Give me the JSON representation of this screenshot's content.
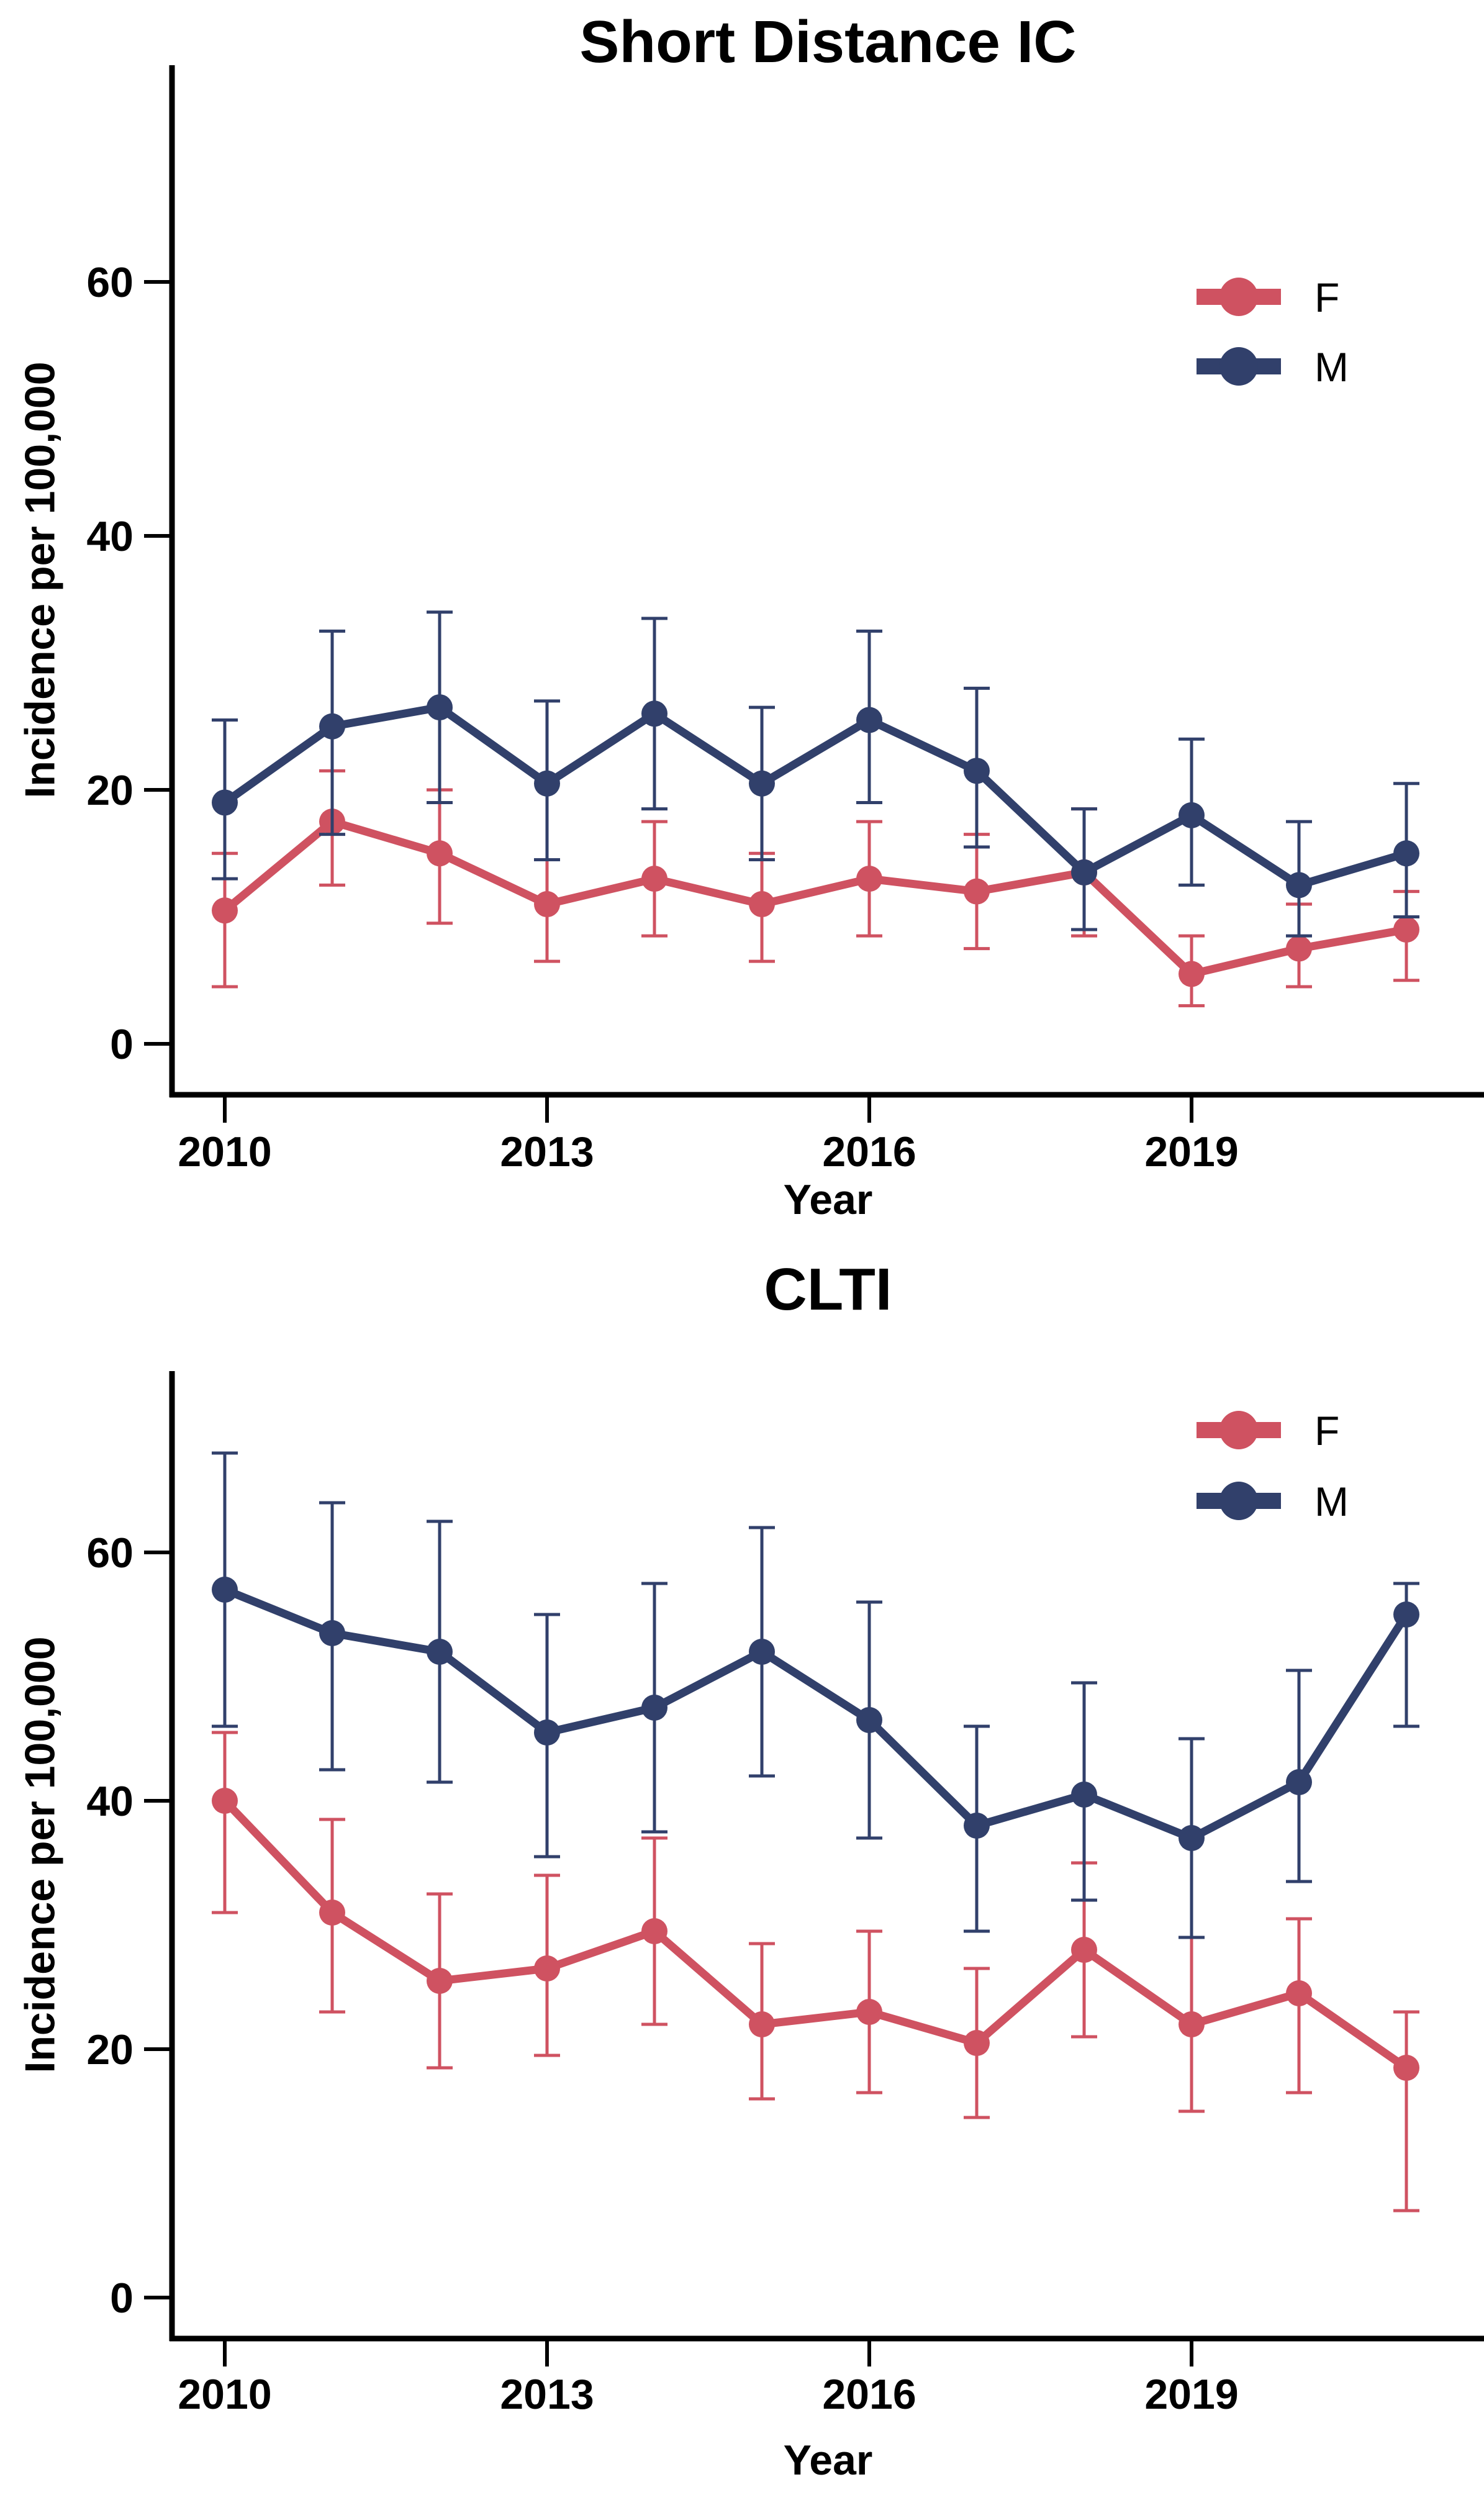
{
  "figure": {
    "background": "#ffffff",
    "text_color": "#000000"
  },
  "chart_data": [
    {
      "type": "line",
      "title": "Short Distance IC",
      "xlabel": "Year",
      "ylabel": "Incidence per 100,000",
      "x": [
        2010,
        2011,
        2012,
        2013,
        2014,
        2015,
        2016,
        2017,
        2018,
        2019,
        2020,
        2021
      ],
      "xtick_labels": [
        "2010",
        "2013",
        "2016",
        "2019"
      ],
      "xtick_years": [
        2010,
        2013,
        2016,
        2019
      ],
      "ytick_labels": [
        "0",
        "20",
        "40",
        "60"
      ],
      "yticks": [
        0,
        20,
        40,
        60
      ],
      "ylim": [
        0,
        77
      ],
      "grid": false,
      "error_bars": true,
      "legend_position": "top-right-inside",
      "series": [
        {
          "name": "F",
          "color": "#CF5261",
          "values": [
            10.5,
            17.5,
            15,
            11,
            13,
            11,
            13,
            12,
            13.5,
            5.5,
            7.5,
            9
          ],
          "ci_low": [
            4.5,
            12.5,
            9.5,
            6.5,
            8.5,
            6.5,
            8.5,
            7.5,
            8.5,
            3,
            4.5,
            5
          ],
          "ci_high": [
            15,
            21.5,
            20,
            14.5,
            17.5,
            15,
            17.5,
            16.5,
            18.5,
            8.5,
            11,
            12
          ]
        },
        {
          "name": "M",
          "color": "#31406B",
          "values": [
            19,
            25,
            26.5,
            20.5,
            26,
            20.5,
            25.5,
            21.5,
            13.5,
            18,
            12.5,
            15
          ],
          "ci_low": [
            13,
            16.5,
            19,
            14.5,
            18.5,
            14.5,
            19,
            15.5,
            9,
            12.5,
            8.5,
            10
          ],
          "ci_high": [
            25.5,
            32.5,
            34,
            27,
            33.5,
            26.5,
            32.5,
            28,
            18.5,
            24,
            17.5,
            20.5
          ]
        }
      ]
    },
    {
      "type": "line",
      "title": "CLTI",
      "xlabel": "Year",
      "ylabel": "Incidence per 100,000",
      "x": [
        2010,
        2011,
        2012,
        2013,
        2014,
        2015,
        2016,
        2017,
        2018,
        2019,
        2020,
        2021
      ],
      "xtick_labels": [
        "2010",
        "2013",
        "2016",
        "2019"
      ],
      "xtick_years": [
        2010,
        2013,
        2016,
        2019
      ],
      "ytick_labels": [
        "0",
        "20",
        "40",
        "60"
      ],
      "yticks": [
        0,
        20,
        40,
        60
      ],
      "ylim": [
        0,
        75
      ],
      "grid": false,
      "error_bars": true,
      "legend_position": "top-right-inside",
      "series": [
        {
          "name": "F",
          "color": "#CF5261",
          "values": [
            40,
            31,
            25.5,
            26.5,
            29.5,
            22,
            23,
            20.5,
            28,
            22,
            24.5,
            18.5
          ],
          "ci_low": [
            31,
            23,
            18.5,
            19.5,
            22,
            16,
            16.5,
            14.5,
            21,
            15,
            16.5,
            7
          ],
          "ci_high": [
            45.5,
            38.5,
            32.5,
            34,
            37,
            28.5,
            29.5,
            26.5,
            35,
            29,
            30.5,
            23
          ]
        },
        {
          "name": "M",
          "color": "#31406B",
          "values": [
            57,
            53.5,
            52,
            45.5,
            47.5,
            52,
            46.5,
            38,
            40.5,
            37,
            41.5,
            55
          ],
          "ci_low": [
            46,
            42.5,
            41.5,
            35.5,
            37.5,
            42,
            37,
            29.5,
            32,
            29,
            33.5,
            46
          ],
          "ci_high": [
            68,
            64,
            62.5,
            55,
            57.5,
            62,
            56,
            46,
            49.5,
            45,
            50.5,
            57.5
          ]
        }
      ]
    }
  ]
}
